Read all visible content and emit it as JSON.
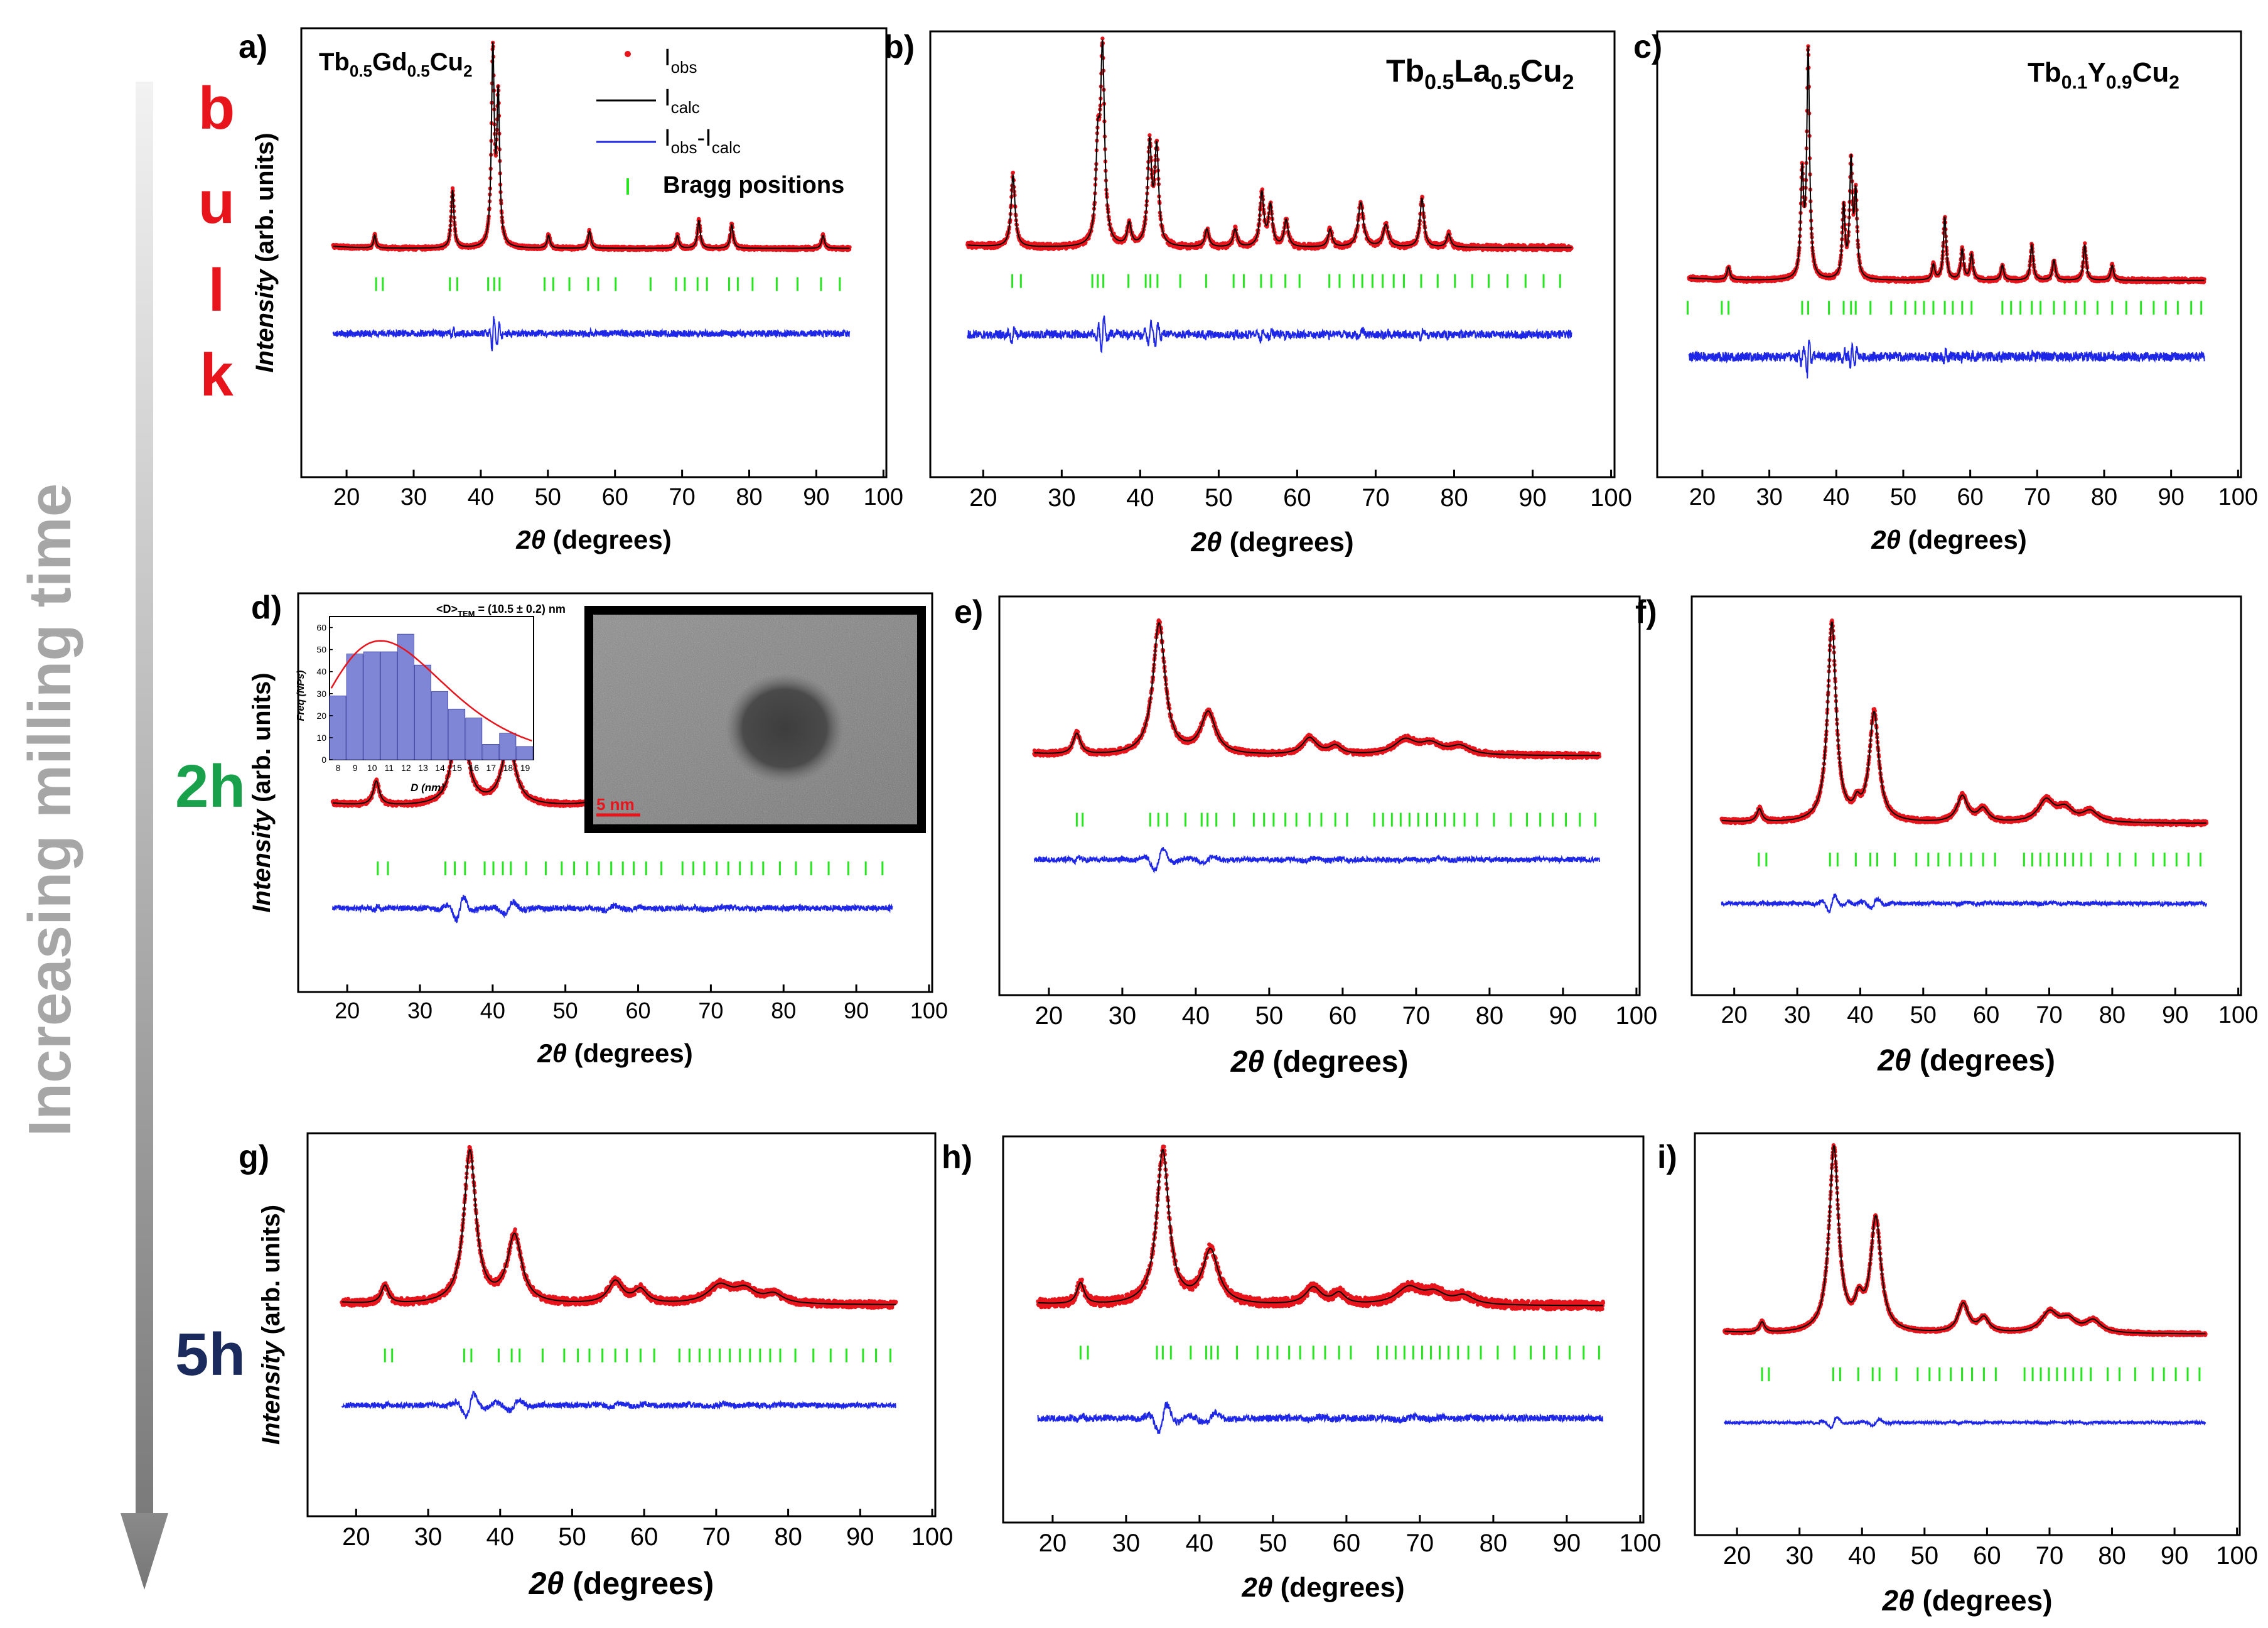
{
  "figure": {
    "side_axis": {
      "label": "Increasing milling time"
    },
    "row_labels": {
      "bulk_letters": [
        "b",
        "u",
        "l",
        "k"
      ],
      "h2": "2h",
      "h5": "5h"
    },
    "legend": {
      "iobs": "I",
      "iobs_sub": "obs",
      "icalc": "I",
      "icalc_sub": "calc",
      "idiff_a": "I",
      "idiff_a_sub": "obs",
      "idiff_dash": "-",
      "idiff_b": "I",
      "idiff_b_sub": "calc",
      "bragg": "Bragg positions"
    },
    "compounds": {
      "a": {
        "p1": "Tb",
        "s1": "0.5",
        "p2": "Gd",
        "s2": "0.5",
        "p3": "Cu",
        "s3": "2"
      },
      "b": {
        "p1": "Tb",
        "s1": "0.5",
        "p2": "La",
        "s2": "0.5",
        "p3": "Cu",
        "s3": "2"
      },
      "c": {
        "p1": "Tb",
        "s1": "0.1",
        "p2": "Y",
        "s2": "0.9",
        "p3": "Cu",
        "s3": "2"
      }
    },
    "inset_hist": {
      "title": "<D>",
      "title_sub": "TEM",
      "title_rest": " = (10.5 ± 0.2) nm",
      "ylabel": "Freq (NPs)",
      "xlabel": "D (nm)"
    },
    "tem": {
      "scale_label": "5 nm"
    },
    "colors": {
      "obs": "#e8141c",
      "calc": "#000000",
      "diff": "#1f27e6",
      "bragg": "#27e61f",
      "bulk_text": "#e8141c",
      "h2_text": "#18a04a",
      "h5_text": "#1b2a5c",
      "hist_bar": "#7f86d6",
      "hist_fit": "#e8141c"
    }
  },
  "chart_data": [
    {
      "panel": "a",
      "panel_label": "a)",
      "type": "scatter",
      "title": "Tb0.5Gd0.5Cu2 (bulk)",
      "xlabel": "2θ (degrees)",
      "ylabel": "Intensity (arb. units)",
      "x_ticks": [
        20,
        30,
        40,
        50,
        60,
        70,
        80,
        90,
        100
      ],
      "x_range": [
        18,
        95
      ],
      "y_range": [
        -0.6,
        1.0
      ],
      "series": [
        "I_obs",
        "I_calc",
        "I_obs-I_calc",
        "Bragg positions"
      ],
      "peaks_2theta": [
        24.2,
        35.8,
        41.8,
        42.6,
        50.1,
        56.2,
        69.3,
        72.5,
        77.4,
        91.0
      ],
      "peak_heights": [
        0.06,
        0.27,
        0.9,
        0.68,
        0.06,
        0.08,
        0.06,
        0.13,
        0.11,
        0.06
      ],
      "peak_widths": [
        0.2,
        0.25,
        0.25,
        0.25,
        0.25,
        0.25,
        0.25,
        0.25,
        0.25,
        0.25
      ],
      "baseline": 0.02,
      "noise": 0.008,
      "diff_amplitude": 0.05,
      "bragg_2theta": [
        24.4,
        25.4,
        35.4,
        36.5,
        41.1,
        42.0,
        42.8,
        49.5,
        50.8,
        53.2,
        56.0,
        57.5,
        60.1,
        65.3,
        69.1,
        70.4,
        72.3,
        73.7,
        77.0,
        78.3,
        80.5,
        84.1,
        87.2,
        90.7,
        93.5
      ]
    },
    {
      "panel": "b",
      "panel_label": "b)",
      "type": "scatter",
      "title": "Tb0.5La0.5Cu2 (bulk)",
      "xlabel": "2θ (degrees)",
      "ylabel": "",
      "x_ticks": [
        20,
        30,
        40,
        50,
        60,
        70,
        80,
        90,
        100
      ],
      "x_range": [
        18,
        95
      ],
      "y_range": [
        -0.6,
        1.0
      ],
      "series": [
        "I_obs",
        "I_calc",
        "I_obs-I_calc",
        "Bragg positions"
      ],
      "peaks_2theta": [
        23.8,
        34.6,
        35.2,
        38.6,
        41.2,
        42.1,
        48.5,
        52.1,
        55.5,
        56.6,
        58.6,
        64.2,
        68.1,
        71.3,
        75.9,
        79.3
      ],
      "peak_heights": [
        0.32,
        0.4,
        0.85,
        0.1,
        0.45,
        0.43,
        0.08,
        0.08,
        0.24,
        0.18,
        0.12,
        0.08,
        0.2,
        0.1,
        0.22,
        0.06
      ],
      "peak_widths": [
        0.3,
        0.3,
        0.3,
        0.3,
        0.3,
        0.3,
        0.3,
        0.3,
        0.3,
        0.3,
        0.3,
        0.3,
        0.4,
        0.4,
        0.3,
        0.3
      ],
      "baseline": 0.03,
      "noise": 0.012,
      "diff_amplitude": 0.06,
      "bragg_2theta": [
        23.7,
        24.8,
        33.9,
        34.6,
        35.3,
        38.5,
        40.7,
        41.3,
        42.2,
        45.1,
        48.4,
        51.9,
        53.2,
        55.4,
        56.7,
        58.5,
        60.3,
        64.1,
        65.4,
        67.2,
        68.3,
        69.6,
        70.9,
        72.3,
        73.6,
        75.8,
        77.9,
        80.1,
        82.3,
        84.4,
        86.8,
        89.1,
        91.4,
        93.5
      ]
    },
    {
      "panel": "c",
      "panel_label": "c)",
      "type": "scatter",
      "title": "Tb0.1Y0.9Cu2 (bulk)",
      "xlabel": "2θ (degrees)",
      "ylabel": "",
      "x_ticks": [
        20,
        30,
        40,
        50,
        60,
        70,
        80,
        90,
        100
      ],
      "x_range": [
        18,
        95
      ],
      "y_range": [
        -0.6,
        1.0
      ],
      "series": [
        "I_obs",
        "I_calc",
        "I_obs-I_calc",
        "Bragg positions"
      ],
      "peaks_2theta": [
        23.9,
        34.9,
        35.8,
        41.1,
        42.2,
        42.9,
        54.5,
        56.2,
        58.8,
        60.2,
        64.8,
        69.2,
        72.5,
        77.1,
        81.2
      ],
      "peak_heights": [
        0.05,
        0.4,
        0.9,
        0.28,
        0.45,
        0.32,
        0.06,
        0.25,
        0.12,
        0.1,
        0.06,
        0.14,
        0.08,
        0.14,
        0.06
      ],
      "peak_widths": [
        0.25,
        0.25,
        0.25,
        0.25,
        0.25,
        0.25,
        0.25,
        0.25,
        0.25,
        0.25,
        0.25,
        0.25,
        0.25,
        0.25,
        0.25
      ],
      "baseline": 0.02,
      "noise": 0.008,
      "diff_amplitude": 0.06,
      "bragg_2theta": [
        17.8,
        22.9,
        23.9,
        34.9,
        35.8,
        38.9,
        41.1,
        42.2,
        42.9,
        45.1,
        48.2,
        50.3,
        51.8,
        53.1,
        54.5,
        56.2,
        57.4,
        58.8,
        60.2,
        64.8,
        66.1,
        67.5,
        69.2,
        70.5,
        72.5,
        74.1,
        75.8,
        77.1,
        79.0,
        81.2,
        83.3,
        85.5,
        87.4,
        89.2,
        91.0,
        93.0,
        94.5
      ]
    },
    {
      "panel": "d",
      "panel_label": "d)",
      "type": "scatter",
      "title": "2h milled",
      "xlabel": "2θ (degrees)",
      "ylabel": "Intensity (arb. units)",
      "x_ticks": [
        20,
        30,
        40,
        50,
        60,
        70,
        80,
        90,
        100
      ],
      "x_range": [
        18,
        95
      ],
      "y_range": [
        -0.6,
        1.0
      ],
      "series": [
        "I_obs",
        "I_calc",
        "I_obs-I_calc",
        "Bragg positions"
      ],
      "peaks_2theta": [
        24.0,
        35.5,
        42.2,
        56.0,
        59.5,
        70.5,
        72.5,
        77.0
      ],
      "peak_heights": [
        0.08,
        0.42,
        0.21,
        0.08,
        0.04,
        0.06,
        0.04,
        0.03
      ],
      "peak_widths": [
        0.5,
        0.9,
        1.1,
        1.2,
        1.0,
        1.8,
        1.5,
        1.5
      ],
      "baseline": 0.02,
      "noise": 0.008,
      "diff_amplitude": 0.03,
      "bragg_2theta": [
        24.2,
        25.6,
        33.5,
        34.8,
        36.2,
        38.9,
        40.1,
        41.4,
        42.5,
        44.6,
        47.3,
        49.5,
        51.2,
        53.0,
        54.6,
        56.3,
        57.9,
        59.4,
        61.1,
        63.2,
        66.1,
        67.6,
        69.1,
        70.8,
        72.4,
        74.0,
        75.6,
        77.2,
        79.5,
        81.7,
        83.8,
        86.2,
        88.9,
        91.3,
        93.6
      ]
    },
    {
      "panel": "e",
      "panel_label": "e)",
      "type": "scatter",
      "title": "2h milled",
      "xlabel": "2θ (degrees)",
      "ylabel": "",
      "x_ticks": [
        20,
        30,
        40,
        50,
        60,
        70,
        80,
        90,
        100
      ],
      "x_range": [
        18,
        95
      ],
      "y_range": [
        -0.6,
        1.0
      ],
      "series": [
        "I_obs",
        "I_calc",
        "I_obs-I_calc",
        "Bragg positions"
      ],
      "peaks_2theta": [
        23.8,
        35.0,
        41.7,
        55.5,
        59.0,
        68.5,
        72.0,
        76.0
      ],
      "peak_heights": [
        0.1,
        0.63,
        0.2,
        0.08,
        0.04,
        0.07,
        0.05,
        0.04
      ],
      "peak_widths": [
        0.6,
        1.0,
        1.2,
        1.2,
        1.0,
        1.8,
        1.8,
        1.6
      ],
      "baseline": 0.02,
      "noise": 0.012,
      "diff_amplitude": 0.04,
      "bragg_2theta": [
        23.8,
        24.6,
        33.8,
        34.9,
        36.1,
        38.6,
        40.8,
        41.6,
        42.8,
        45.2,
        47.9,
        49.3,
        50.6,
        52.2,
        53.7,
        55.5,
        57.1,
        59.0,
        60.6,
        64.3,
        65.5,
        66.7,
        67.9,
        69.1,
        70.3,
        71.5,
        72.7,
        73.9,
        75.2,
        76.6,
        78.3,
        80.6,
        82.9,
        85.1,
        86.9,
        88.6,
        90.4,
        92.3,
        94.4
      ]
    },
    {
      "panel": "f",
      "panel_label": "f)",
      "type": "scatter",
      "title": "2h milled",
      "xlabel": "2θ (degrees)",
      "ylabel": "",
      "x_ticks": [
        20,
        30,
        40,
        50,
        60,
        70,
        80,
        90,
        100
      ],
      "x_range": [
        18,
        95
      ],
      "y_range": [
        -0.6,
        1.0
      ],
      "series": [
        "I_obs",
        "I_calc",
        "I_obs-I_calc",
        "Bragg positions"
      ],
      "peaks_2theta": [
        24.0,
        35.5,
        39.5,
        42.2,
        56.2,
        59.5,
        69.5,
        72.5,
        76.5
      ],
      "peak_heights": [
        0.06,
        0.92,
        0.06,
        0.5,
        0.12,
        0.06,
        0.1,
        0.06,
        0.05
      ],
      "peak_widths": [
        0.5,
        0.8,
        0.6,
        0.9,
        1.0,
        1.0,
        1.5,
        1.5,
        1.5
      ],
      "baseline": 0.02,
      "noise": 0.01,
      "diff_amplitude": 0.03,
      "bragg_2theta": [
        23.9,
        25.1,
        35.2,
        36.4,
        39.3,
        41.6,
        42.7,
        45.5,
        48.9,
        50.8,
        52.4,
        54.2,
        56.0,
        57.6,
        59.5,
        61.4,
        66.0,
        67.3,
        68.6,
        69.9,
        71.2,
        72.5,
        73.8,
        75.1,
        76.6,
        79.3,
        81.2,
        83.7,
        86.5,
        88.3,
        90.2,
        92.1,
        94.0
      ]
    },
    {
      "panel": "g",
      "panel_label": "g)",
      "type": "scatter",
      "title": "5h milled",
      "xlabel": "2θ (degrees)",
      "ylabel": "Intensity (arb. units)",
      "x_ticks": [
        20,
        30,
        40,
        50,
        60,
        70,
        80,
        90,
        100
      ],
      "x_range": [
        18,
        95
      ],
      "y_range": [
        -0.6,
        1.0
      ],
      "series": [
        "I_obs",
        "I_calc",
        "I_obs-I_calc",
        "Bragg positions"
      ],
      "peaks_2theta": [
        24.0,
        35.8,
        42.0,
        56.0,
        59.5,
        70.5,
        74.0,
        78.0
      ],
      "peak_heights": [
        0.08,
        0.68,
        0.3,
        0.1,
        0.06,
        0.08,
        0.06,
        0.04
      ],
      "peak_widths": [
        0.6,
        1.0,
        1.2,
        1.2,
        1.1,
        2.0,
        1.8,
        1.6
      ],
      "baseline": 0.02,
      "noise": 0.015,
      "diff_amplitude": 0.04,
      "bragg_2theta": [
        24.0,
        25.0,
        35.0,
        36.0,
        39.8,
        41.6,
        42.7,
        45.9,
        48.9,
        50.8,
        52.4,
        54.2,
        56.0,
        57.6,
        59.5,
        61.4,
        64.9,
        66.3,
        67.7,
        69.1,
        70.5,
        71.9,
        73.3,
        74.7,
        76.1,
        77.5,
        78.9,
        81.0,
        83.5,
        85.9,
        88.1,
        90.4,
        92.2,
        94.2
      ]
    },
    {
      "panel": "h",
      "panel_label": "h)",
      "type": "scatter",
      "title": "5h milled",
      "xlabel": "2θ (degrees)",
      "ylabel": "",
      "x_ticks": [
        20,
        30,
        40,
        50,
        60,
        70,
        80,
        90,
        100
      ],
      "x_range": [
        18,
        95
      ],
      "y_range": [
        -0.6,
        1.0
      ],
      "series": [
        "I_obs",
        "I_calc",
        "I_obs-I_calc",
        "Bragg positions"
      ],
      "peaks_2theta": [
        23.8,
        35.0,
        41.5,
        55.5,
        59.0,
        68.5,
        72.0,
        76.0
      ],
      "peak_heights": [
        0.1,
        0.72,
        0.25,
        0.08,
        0.05,
        0.08,
        0.05,
        0.04
      ],
      "peak_widths": [
        0.6,
        1.0,
        1.3,
        1.3,
        1.0,
        2.0,
        1.8,
        1.6
      ],
      "baseline": 0.02,
      "noise": 0.02,
      "diff_amplitude": 0.05,
      "bragg_2theta": [
        23.8,
        24.8,
        34.2,
        35.0,
        36.1,
        38.8,
        40.9,
        41.6,
        42.5,
        45.1,
        47.9,
        49.3,
        50.6,
        52.2,
        53.7,
        55.5,
        57.1,
        59.0,
        60.6,
        64.3,
        65.5,
        66.7,
        67.9,
        69.1,
        70.3,
        71.5,
        72.7,
        73.9,
        75.2,
        76.6,
        78.3,
        80.6,
        82.9,
        85.1,
        86.9,
        88.6,
        90.4,
        92.3,
        94.4
      ]
    },
    {
      "panel": "i",
      "panel_label": "i)",
      "type": "scatter",
      "title": "5h milled",
      "xlabel": "2θ (degrees)",
      "ylabel": "",
      "x_ticks": [
        20,
        30,
        40,
        50,
        60,
        70,
        80,
        90,
        100
      ],
      "x_range": [
        18,
        95
      ],
      "y_range": [
        -0.6,
        1.0
      ],
      "series": [
        "I_obs",
        "I_calc",
        "I_obs-I_calc",
        "Bragg positions"
      ],
      "peaks_2theta": [
        24.0,
        35.5,
        39.5,
        42.2,
        56.2,
        59.5,
        70.0,
        73.0,
        77.0
      ],
      "peak_heights": [
        0.05,
        0.9,
        0.12,
        0.55,
        0.14,
        0.07,
        0.1,
        0.06,
        0.06
      ],
      "peak_widths": [
        0.5,
        0.9,
        0.8,
        1.0,
        1.0,
        1.0,
        1.6,
        1.5,
        1.5
      ],
      "baseline": 0.02,
      "noise": 0.008,
      "diff_amplitude": 0.02,
      "bragg_2theta": [
        24.0,
        25.1,
        35.4,
        36.5,
        39.4,
        41.7,
        42.8,
        45.5,
        48.9,
        50.8,
        52.4,
        54.2,
        56.0,
        57.6,
        59.5,
        61.4,
        66.0,
        67.3,
        68.6,
        69.9,
        71.2,
        72.5,
        73.8,
        75.1,
        76.6,
        79.3,
        81.2,
        83.7,
        86.5,
        88.3,
        90.2,
        92.1,
        94.0
      ]
    },
    {
      "panel": "d-inset",
      "type": "bar",
      "title": "<D>TEM = (10.5 ± 0.2) nm",
      "xlabel": "D (nm)",
      "ylabel": "Freq (NPs)",
      "categories": [
        8,
        9,
        10,
        11,
        12,
        13,
        14,
        15,
        16,
        17,
        18,
        19
      ],
      "values": [
        29,
        48,
        49,
        49,
        57,
        43,
        31,
        23,
        19,
        7,
        12,
        6
      ],
      "x_ticks": [
        8,
        9,
        10,
        11,
        12,
        13,
        14,
        15,
        16,
        17,
        18,
        19
      ],
      "y_ticks": [
        0,
        10,
        20,
        30,
        40,
        50,
        60
      ],
      "ylim": [
        0,
        65
      ],
      "fit_mode": 10.5,
      "fit_peak": 54
    }
  ]
}
